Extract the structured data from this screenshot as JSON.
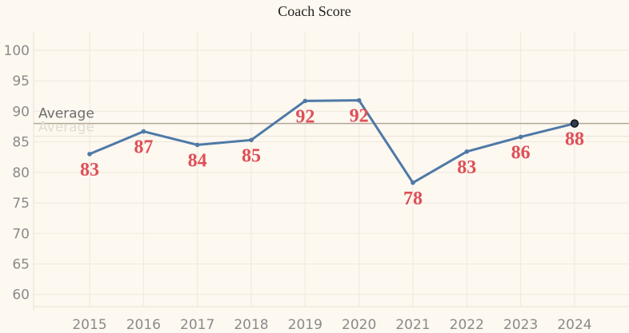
{
  "chart_data": {
    "type": "line",
    "title": "Coach Score",
    "xlabel": "",
    "ylabel": "",
    "categories": [
      "2015",
      "2016",
      "2017",
      "2018",
      "2019",
      "2020",
      "2021",
      "2022",
      "2023",
      "2024"
    ],
    "series": [
      {
        "values": [
          83,
          86.7,
          84.5,
          85.3,
          91.7,
          91.8,
          78.3,
          83.4,
          85.8,
          88
        ]
      }
    ],
    "data_labels": [
      "83",
      "87",
      "84",
      "85",
      "92",
      "92",
      "78",
      "83",
      "86",
      "88"
    ],
    "yticks": [
      "60",
      "65",
      "70",
      "75",
      "80",
      "85",
      "90",
      "95",
      "100"
    ],
    "ylim": [
      58,
      103
    ],
    "reference_line": {
      "label": "Average",
      "value": 88
    },
    "grid": true,
    "legend": "none",
    "colors": {
      "line": "#4e79a7",
      "label": "#de4f57",
      "average_line": "#b3a899",
      "grid": "#efe9de",
      "background": "#fdf8f0"
    }
  }
}
